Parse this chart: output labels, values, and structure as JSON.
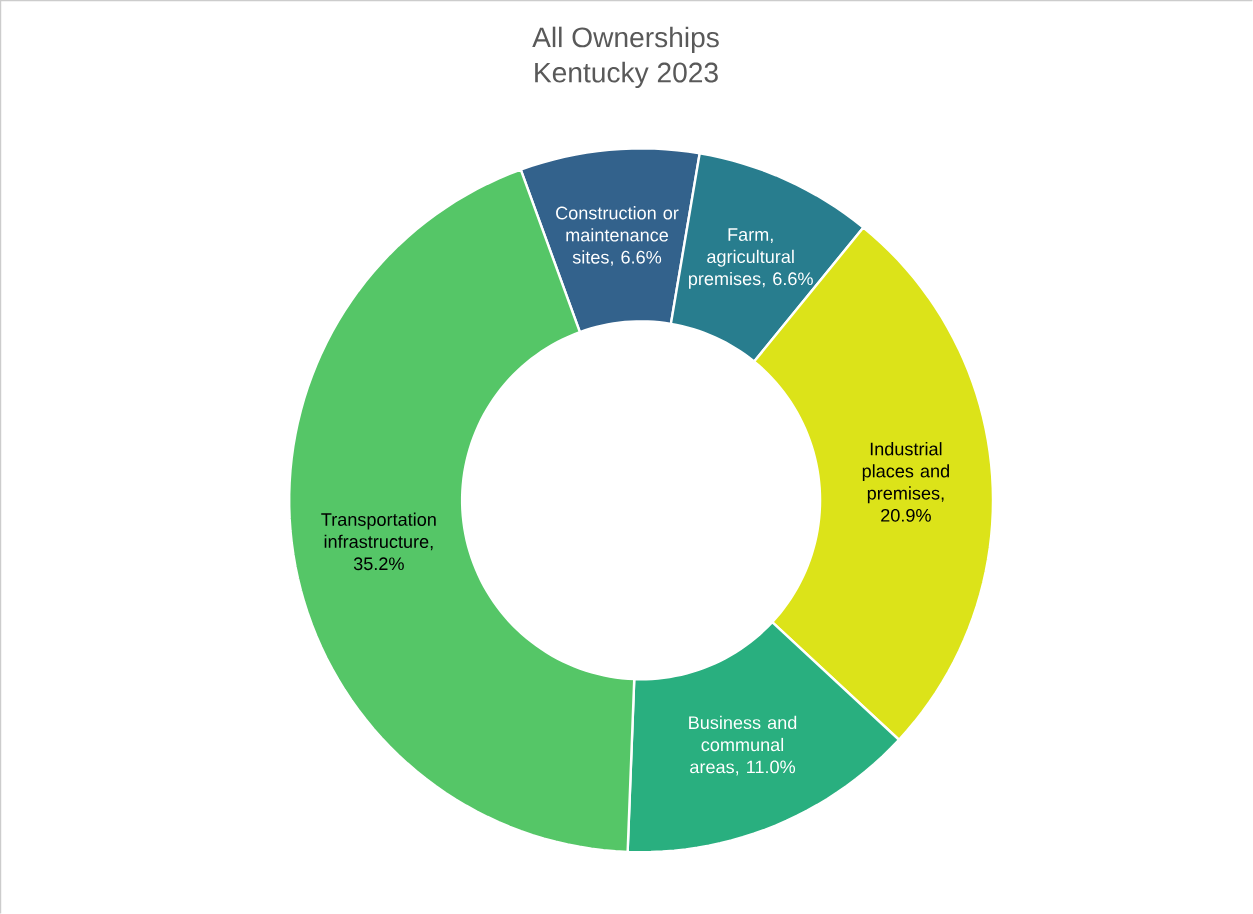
{
  "chart_data": {
    "type": "donut",
    "title": "All Ownerships",
    "subtitle": "Kentucky 2023",
    "categories": [
      "Construction or maintenance sites",
      "Farm, agricultural premises",
      "Industrial places and premises",
      "Business and communal areas",
      "Transportation infrastructure"
    ],
    "values": [
      6.6,
      6.6,
      20.9,
      11.0,
      35.2
    ],
    "value_labels": [
      ", 6.6%",
      ", 6.6%",
      ", 20.9%",
      ", 11.0%",
      ", 35.2%"
    ],
    "colors": [
      "#33628c",
      "#287d8e",
      "#dce319",
      "#29af7f",
      "#55c667"
    ]
  }
}
